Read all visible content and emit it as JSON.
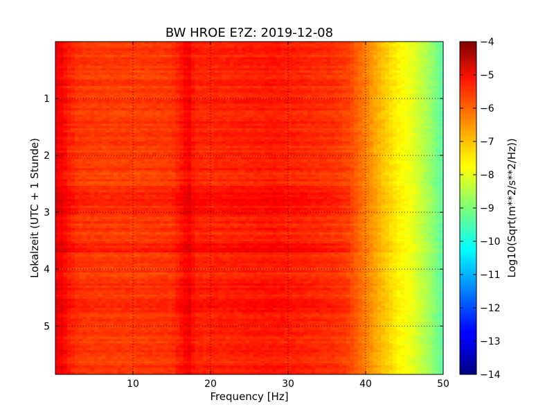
{
  "chart_data": {
    "type": "heatmap",
    "title": "BW HROE E?Z: 2019-12-08",
    "xlabel": "Frequency [Hz]",
    "ylabel": "Lokalzeit (UTC + 1 Stunde)",
    "xlim": [
      0,
      50
    ],
    "ylim": [
      5.85,
      0
    ],
    "x_ticks": [
      10,
      20,
      30,
      40,
      50
    ],
    "y_ticks": [
      1,
      2,
      3,
      4,
      5
    ],
    "grid": true,
    "colormap": "jet",
    "colorbar": {
      "label": "Log10(Sqrt(m**2/s**2/Hz))",
      "range": [
        -14,
        -4
      ],
      "ticks": [
        -4,
        -5,
        -6,
        -7,
        -8,
        -9,
        -10,
        -11,
        -12,
        -13,
        -14
      ]
    },
    "frequency_profile": {
      "frequency_hz": [
        0,
        0.5,
        1.5,
        3,
        6,
        10,
        15,
        16.5,
        17.2,
        18,
        22,
        28,
        33,
        36,
        38,
        40,
        42,
        44,
        46,
        48,
        50
      ],
      "log10_amplitude": [
        -5.3,
        -5.1,
        -5.5,
        -5.8,
        -5.85,
        -5.85,
        -5.8,
        -5.4,
        -5.2,
        -5.6,
        -5.6,
        -5.5,
        -5.65,
        -5.75,
        -5.95,
        -6.5,
        -7.1,
        -7.6,
        -8.0,
        -8.6,
        -9.4
      ]
    },
    "notes": "Spectrogram: mostly -5 to -6 from 0-38 Hz with a strong line near 17 Hz and enhanced bands near 2.6-3.0 h and 3.6-3.7 h; amplitude falls to about -9 to -10 near 50 Hz."
  }
}
